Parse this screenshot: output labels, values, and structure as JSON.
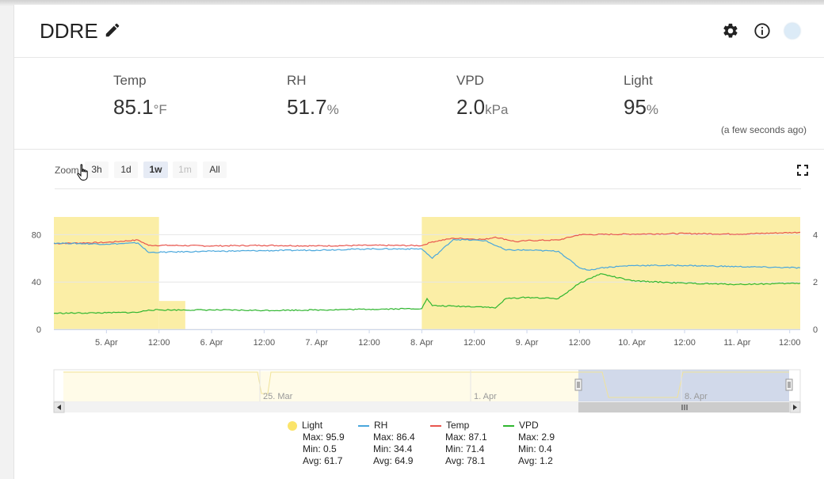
{
  "device": {
    "title": "DDRE"
  },
  "metrics": [
    {
      "label": "Temp",
      "value": "85.1",
      "unit": "°F"
    },
    {
      "label": "RH",
      "value": "51.7",
      "unit": "%"
    },
    {
      "label": "VPD",
      "value": "2.0",
      "unit": "kPa"
    },
    {
      "label": "Light",
      "value": "95",
      "unit": "%"
    }
  ],
  "updated": "(a few seconds ago)",
  "zoom": {
    "label": "Zoom",
    "buttons": [
      "3h",
      "1d",
      "1w",
      "1m",
      "All"
    ],
    "active": "1w",
    "disabled": [
      "1m"
    ]
  },
  "icons": [
    "pencil-icon",
    "gear-icon",
    "info-icon",
    "fullscreen-icon",
    "hand-cursor-icon"
  ],
  "colors": {
    "light": "#fbeea6",
    "rh": "#4aa7dc",
    "temp": "#e8554e",
    "vpd": "#2fb62f",
    "navigator_mask": "#c9d2e6"
  },
  "chart_data": {
    "type": "line",
    "x_tick_labels": [
      "5. Apr",
      "12:00",
      "6. Apr",
      "12:00",
      "7. Apr",
      "12:00",
      "8. Apr",
      "12:00",
      "9. Apr",
      "12:00",
      "10. Apr",
      "12:00",
      "11. Apr",
      "12:00"
    ],
    "y_left_ticks": [
      "0",
      "40",
      "80"
    ],
    "y_right_ticks": [
      "0",
      "2",
      "4"
    ],
    "y_left_range": [
      0,
      95
    ],
    "y_right_range": [
      0,
      4.75
    ],
    "navigator_labels": [
      "25. Mar",
      "1. Apr",
      "8. Apr"
    ],
    "light_on_periods": [
      [
        4.5,
        5.5
      ],
      [
        5.5,
        5.75
      ],
      [
        8.0,
        11.6
      ]
    ],
    "series": [
      {
        "name": "Temp",
        "axis": "left",
        "points": [
          [
            4.5,
            72.5
          ],
          [
            5.0,
            73.5
          ],
          [
            5.3,
            75.5
          ],
          [
            5.4,
            71
          ],
          [
            5.6,
            71
          ],
          [
            6.0,
            70.5
          ],
          [
            6.5,
            71
          ],
          [
            7.0,
            70.5
          ],
          [
            7.5,
            71
          ],
          [
            8.0,
            70.8
          ],
          [
            8.1,
            74
          ],
          [
            8.3,
            77
          ],
          [
            8.6,
            76
          ],
          [
            8.7,
            78
          ],
          [
            8.9,
            74
          ],
          [
            9.0,
            75
          ],
          [
            9.3,
            75.5
          ],
          [
            9.5,
            80
          ],
          [
            10.0,
            80.5
          ],
          [
            10.5,
            81
          ],
          [
            11.0,
            80.5
          ],
          [
            11.6,
            82
          ]
        ]
      },
      {
        "name": "RH",
        "axis": "left",
        "points": [
          [
            4.5,
            73
          ],
          [
            5.0,
            72
          ],
          [
            5.3,
            73
          ],
          [
            5.4,
            65
          ],
          [
            6.0,
            66
          ],
          [
            6.5,
            66.5
          ],
          [
            7.0,
            67
          ],
          [
            7.5,
            68
          ],
          [
            8.0,
            68
          ],
          [
            8.1,
            60
          ],
          [
            8.3,
            76
          ],
          [
            8.6,
            75
          ],
          [
            8.8,
            67
          ],
          [
            9.0,
            67
          ],
          [
            9.3,
            66
          ],
          [
            9.5,
            52
          ],
          [
            9.6,
            50
          ],
          [
            9.7,
            52
          ],
          [
            10.0,
            54
          ],
          [
            10.5,
            54
          ],
          [
            11.0,
            53
          ],
          [
            11.6,
            52
          ]
        ]
      },
      {
        "name": "VPD",
        "axis": "right",
        "points": [
          [
            4.5,
            0.68
          ],
          [
            5.0,
            0.7
          ],
          [
            5.3,
            0.72
          ],
          [
            5.4,
            0.82
          ],
          [
            5.6,
            0.82
          ],
          [
            6.0,
            0.82
          ],
          [
            6.5,
            0.8
          ],
          [
            7.0,
            0.82
          ],
          [
            7.5,
            0.85
          ],
          [
            8.0,
            0.88
          ],
          [
            8.05,
            1.3
          ],
          [
            8.1,
            1.0
          ],
          [
            8.6,
            0.95
          ],
          [
            8.7,
            0.9
          ],
          [
            8.8,
            1.3
          ],
          [
            9.0,
            1.35
          ],
          [
            9.3,
            1.3
          ],
          [
            9.5,
            1.95
          ],
          [
            9.7,
            2.35
          ],
          [
            10.0,
            2.05
          ],
          [
            10.5,
            1.95
          ],
          [
            11.0,
            1.9
          ],
          [
            11.6,
            1.95
          ]
        ]
      }
    ],
    "legend": [
      {
        "name": "Light",
        "max": "Max: 95.9",
        "min": "Min: 0.5",
        "avg": "Avg: 61.7"
      },
      {
        "name": "RH",
        "max": "Max: 86.4",
        "min": "Min: 34.4",
        "avg": "Avg: 64.9"
      },
      {
        "name": "Temp",
        "max": "Max: 87.1",
        "min": "Min: 71.4",
        "avg": "Avg: 78.1"
      },
      {
        "name": "VPD",
        "max": "Max: 2.9",
        "min": "Min: 0.4",
        "avg": "Avg: 1.2"
      }
    ]
  }
}
